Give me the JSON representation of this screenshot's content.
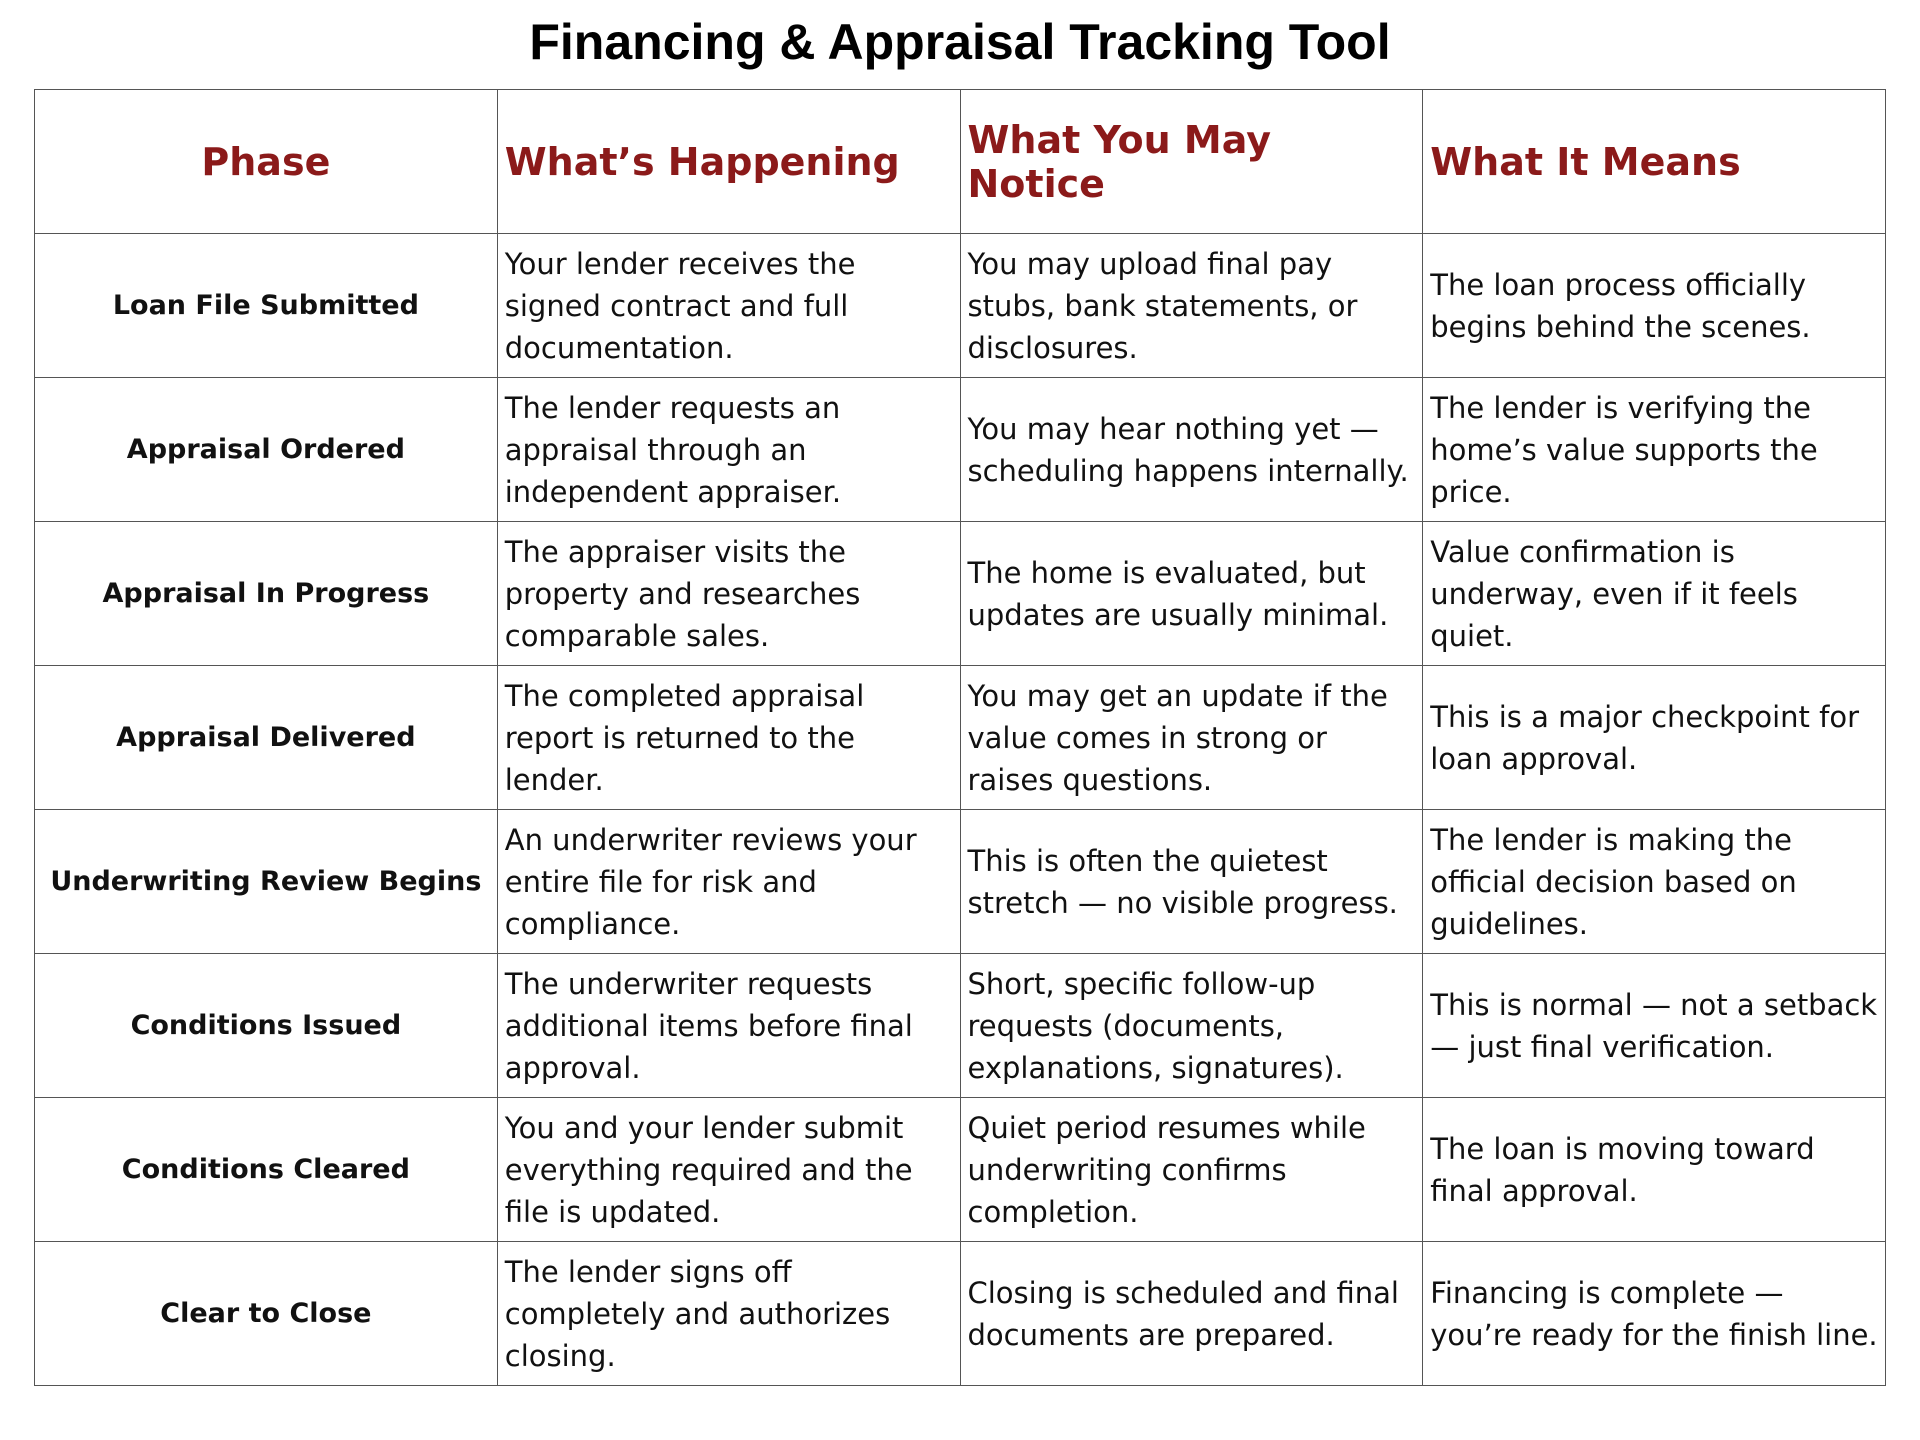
{
  "title": "Financing & Appraisal Tracking Tool",
  "colors": {
    "header_text": "#8b1a1a",
    "border": "#555555"
  },
  "headers": [
    "Phase",
    "What’s Happening",
    "What You May Notice",
    "What It Means"
  ],
  "rows": [
    [
      "Loan File Submitted",
      "Your lender receives the signed contract and full documentation.",
      "You may upload final pay stubs, bank statements, or disclosures.",
      "The loan process officially begins behind the scenes."
    ],
    [
      "Appraisal Ordered",
      "The lender requests an appraisal through an independent appraiser.",
      "You may hear nothing yet — scheduling happens internally.",
      "The lender is verifying the home’s value supports the price."
    ],
    [
      "Appraisal In Progress",
      "The appraiser visits the property and researches comparable sales.",
      "The home is evaluated, but updates are usually minimal.",
      "Value confirmation is underway, even if it feels quiet."
    ],
    [
      "Appraisal Delivered",
      "The completed appraisal report is returned to the lender.",
      "You may get an update if the value comes in strong or raises questions.",
      "This is a major checkpoint for loan approval."
    ],
    [
      "Underwriting Review Begins",
      "An underwriter reviews your entire file for risk and compliance.",
      "This is often the quietest stretch — no visible progress.",
      "The lender is making the official decision based on guidelines."
    ],
    [
      "Conditions Issued",
      "The underwriter requests additional items before final approval.",
      "Short, specific follow-up requests (documents, explanations, signatures).",
      "This is normal — not a setback — just final verification."
    ],
    [
      "Conditions Cleared",
      "You and your lender submit everything required and the file is updated.",
      "Quiet period resumes while underwriting confirms completion.",
      "The loan is moving toward final approval."
    ],
    [
      "Clear to Close",
      "The lender signs off completely and authorizes closing.",
      "Closing is scheduled and final documents are prepared.",
      "Financing is complete — you’re ready for the finish line."
    ]
  ]
}
